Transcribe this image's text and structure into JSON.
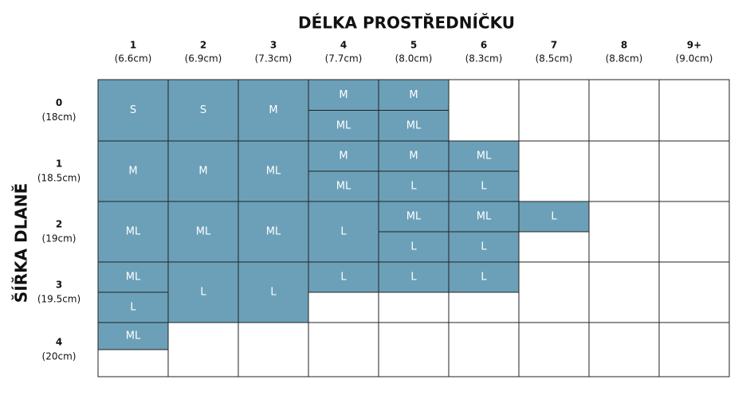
{
  "header": {
    "title": "DÉLKA PROSTŘEDNÍČKU",
    "row_title": "ŠÍŘKA DLANĚ"
  },
  "table": {
    "columns": [
      {
        "number": "1",
        "size": "(6.6cm)"
      },
      {
        "number": "2",
        "size": "(6.9cm)"
      },
      {
        "number": "3",
        "size": "(7.3cm)"
      },
      {
        "number": "4",
        "size": "(7.7cm)"
      },
      {
        "number": "5",
        "size": "(8.0cm)"
      },
      {
        "number": "6",
        "size": "(8.3cm)"
      },
      {
        "number": "7",
        "size": "(8.5cm)"
      },
      {
        "number": "8",
        "size": "(8.8cm)"
      },
      {
        "number": "9+",
        "size": "(9.0cm)"
      }
    ],
    "rows": [
      {
        "number": "0",
        "size": "(18cm)",
        "cells": [
          [
            "S"
          ],
          [
            "S"
          ],
          [
            "M"
          ],
          [
            "M",
            "ML"
          ],
          [
            "M",
            "ML"
          ],
          [],
          [],
          [],
          []
        ]
      },
      {
        "number": "1",
        "size": "(18.5cm)",
        "cells": [
          [
            "M"
          ],
          [
            "M"
          ],
          [
            "ML"
          ],
          [
            "M",
            "ML"
          ],
          [
            "M",
            "L"
          ],
          [
            "ML",
            "L"
          ],
          [],
          [],
          []
        ]
      },
      {
        "number": "2",
        "size": "(19cm)",
        "cells": [
          [
            "ML"
          ],
          [
            "ML"
          ],
          [
            "ML"
          ],
          [
            "L"
          ],
          [
            "ML",
            "L"
          ],
          [
            "ML",
            "L"
          ],
          [
            "L",
            null
          ],
          [],
          []
        ]
      },
      {
        "number": "3",
        "size": "(19.5cm)",
        "cells": [
          [
            "ML",
            "L"
          ],
          [
            "L"
          ],
          [
            "L"
          ],
          [
            "L",
            null
          ],
          [
            "L",
            null
          ],
          [
            "L",
            null
          ],
          [],
          [],
          []
        ]
      },
      {
        "number": "4",
        "size": "(20cm)",
        "cells": [
          [
            "ML",
            null
          ],
          [],
          [],
          [],
          [],
          [],
          [],
          [],
          []
        ]
      }
    ]
  }
}
